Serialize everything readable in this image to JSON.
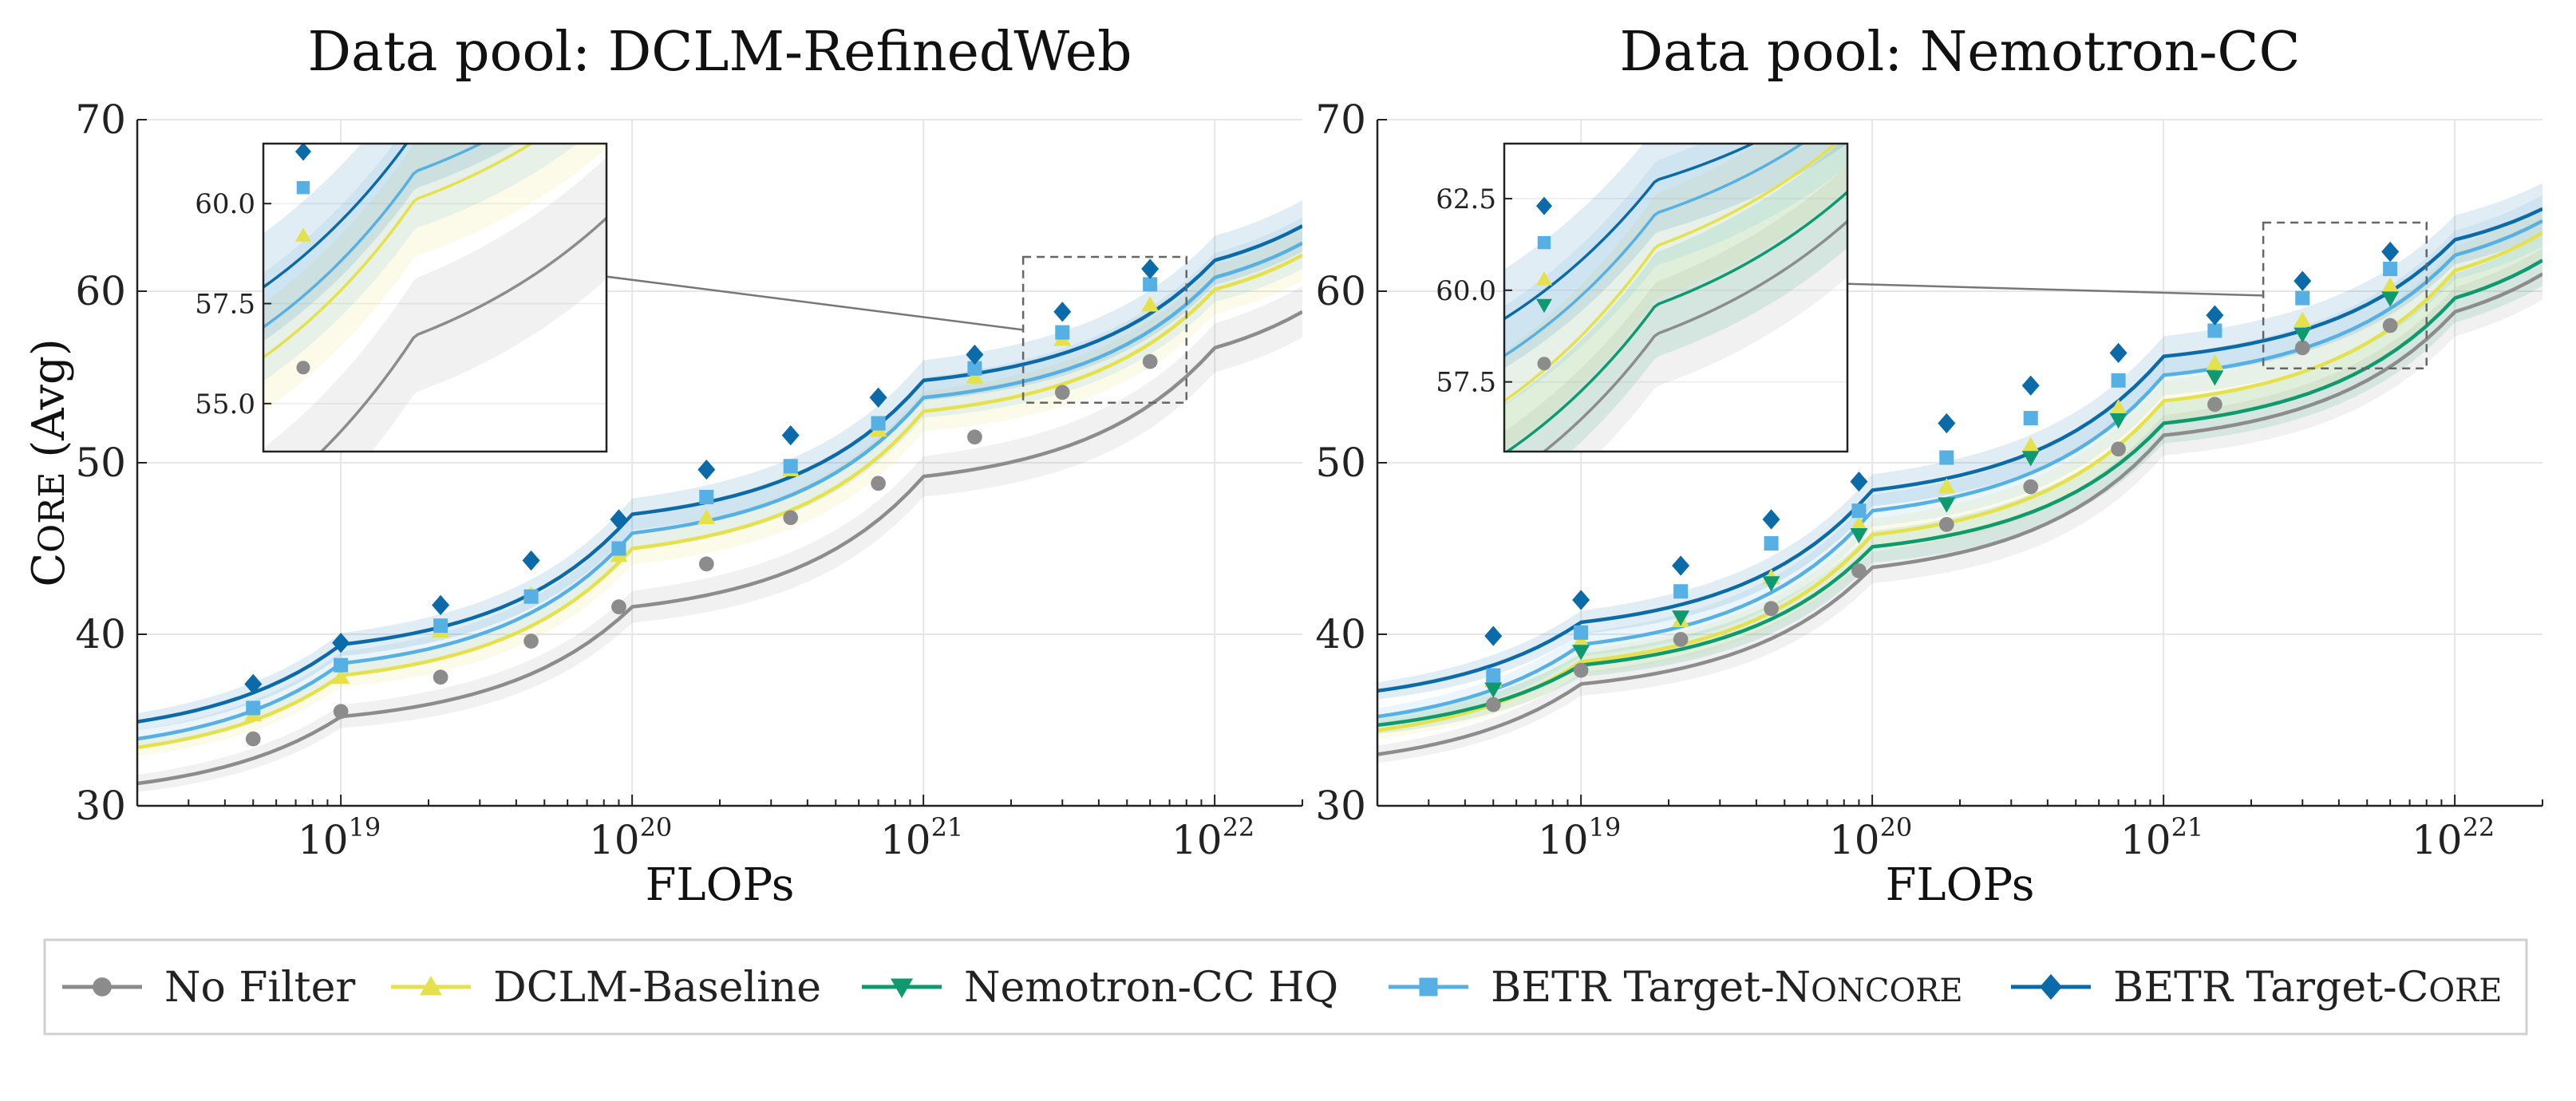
{
  "chart_data": [
    {
      "type": "line",
      "title": "Data pool: DCLM-RefinedWeb",
      "xlabel": "FLOPs",
      "ylabel": "Core (Avg)",
      "xscale": "log",
      "xlim": [
        2e+18,
        2e+22
      ],
      "ylim": [
        30,
        70
      ],
      "x_ticks": [
        {
          "base": "10",
          "exp": "19",
          "value": 1e+19
        },
        {
          "base": "10",
          "exp": "20",
          "value": 1e+20
        },
        {
          "base": "10",
          "exp": "21",
          "value": 1e+21
        },
        {
          "base": "10",
          "exp": "22",
          "value": 1e+22
        }
      ],
      "y_ticks": [
        "30",
        "40",
        "50",
        "60",
        "70"
      ],
      "grid": true,
      "x": [
        5e+18,
        1e+19,
        2.2e+19,
        4.5e+19,
        9e+19,
        1.8e+20,
        3.5e+20,
        7e+20,
        1.5e+21,
        3e+21,
        6e+21
      ],
      "series": [
        {
          "name": "No Filter",
          "marker": "circle",
          "color": "#8c8c8c",
          "values": [
            33.9,
            35.5,
            37.5,
            39.6,
            41.6,
            44.1,
            46.8,
            48.8,
            51.5,
            54.1,
            55.9
          ],
          "fit": {
            "x": [
              2e+18,
              1e+19,
              1e+20,
              1e+21,
              1e+22,
              2e+22
            ],
            "y": [
              31.3,
              35.2,
              41.6,
              49.2,
              56.7,
              58.8
            ]
          }
        },
        {
          "name": "DCLM-Baseline",
          "marker": "triangle-up",
          "color": "#e4e14d",
          "values": [
            35.3,
            37.5,
            40.2,
            42.3,
            44.6,
            46.8,
            49.6,
            51.9,
            55.0,
            57.2,
            59.2
          ],
          "fit": {
            "x": [
              2e+18,
              1e+19,
              1e+20,
              1e+21,
              1e+22,
              2e+22
            ],
            "y": [
              33.4,
              37.6,
              45.0,
              53.0,
              60.1,
              62.1
            ]
          }
        },
        {
          "name": "BETR Target-Noncore",
          "marker": "square",
          "color": "#56b0e4",
          "values": [
            35.7,
            38.2,
            40.5,
            42.2,
            45.0,
            48.0,
            49.8,
            52.3,
            55.5,
            57.6,
            60.4
          ],
          "fit": {
            "x": [
              2e+18,
              1e+19,
              1e+20,
              1e+21,
              1e+22,
              2e+22
            ],
            "y": [
              33.9,
              38.3,
              45.9,
              53.8,
              60.8,
              62.8
            ]
          }
        },
        {
          "name": "BETR Target-Core",
          "marker": "diamond",
          "color": "#0b6aa8",
          "values": [
            37.1,
            39.5,
            41.7,
            44.3,
            46.7,
            49.6,
            51.6,
            53.8,
            56.3,
            58.8,
            61.3
          ],
          "fit": {
            "x": [
              2e+18,
              1e+19,
              1e+20,
              1e+21,
              1e+22,
              2e+22
            ],
            "y": [
              34.9,
              39.4,
              47.0,
              54.8,
              61.8,
              63.8
            ]
          }
        }
      ],
      "inset": {
        "xlim": [
          5e+21,
          2.4e+22
        ],
        "ylim": [
          53.8,
          61.5
        ],
        "y_ticks": [
          "55.0",
          "57.5",
          "60.0"
        ]
      },
      "zoom_box": {
        "x": [
          2.2e+21,
          8e+21
        ],
        "y": [
          53.5,
          62.0
        ]
      }
    },
    {
      "type": "line",
      "title": "Data pool: Nemotron-CC",
      "xlabel": "FLOPs",
      "ylabel": "",
      "xscale": "log",
      "xlim": [
        2e+18,
        2e+22
      ],
      "ylim": [
        30,
        70
      ],
      "x_ticks": [
        {
          "base": "10",
          "exp": "19",
          "value": 1e+19
        },
        {
          "base": "10",
          "exp": "20",
          "value": 1e+20
        },
        {
          "base": "10",
          "exp": "21",
          "value": 1e+21
        },
        {
          "base": "10",
          "exp": "22",
          "value": 1e+22
        }
      ],
      "y_ticks": [
        "30",
        "40",
        "50",
        "60",
        "70"
      ],
      "grid": true,
      "x": [
        5e+18,
        1e+19,
        2.2e+19,
        4.5e+19,
        9e+19,
        1.8e+20,
        3.5e+20,
        7e+20,
        1.5e+21,
        3e+21,
        6e+21
      ],
      "series": [
        {
          "name": "No Filter",
          "marker": "circle",
          "color": "#8c8c8c",
          "values": [
            35.9,
            37.9,
            39.7,
            41.5,
            43.7,
            46.4,
            48.6,
            50.8,
            53.4,
            56.7,
            58.0
          ],
          "fit": {
            "x": [
              2e+18,
              1e+19,
              1e+20,
              1e+21,
              1e+22,
              2e+22
            ],
            "y": [
              33.0,
              37.1,
              43.9,
              51.6,
              58.8,
              61.0
            ]
          }
        },
        {
          "name": "DCLM-Baseline",
          "marker": "triangle-up",
          "color": "#e4e14d",
          "values": [
            37.3,
            39.6,
            40.8,
            43.3,
            46.4,
            48.6,
            51.0,
            53.2,
            55.8,
            58.3,
            60.3
          ],
          "fit": {
            "x": [
              2e+18,
              1e+19,
              1e+20,
              1e+21,
              1e+22,
              2e+22
            ],
            "y": [
              34.4,
              38.4,
              45.8,
              53.6,
              61.2,
              63.4
            ]
          }
        },
        {
          "name": "Nemotron-CC HQ",
          "marker": "triangle-down",
          "color": "#0e9a6e",
          "values": [
            36.8,
            39.0,
            41.0,
            43.0,
            45.8,
            47.6,
            50.3,
            52.5,
            55.0,
            57.5,
            59.6
          ],
          "fit": {
            "x": [
              2e+18,
              1e+19,
              1e+20,
              1e+21,
              1e+22,
              2e+22
            ],
            "y": [
              34.7,
              38.2,
              45.1,
              52.3,
              59.6,
              61.8
            ]
          }
        },
        {
          "name": "BETR Target-Noncore",
          "marker": "square",
          "color": "#56b0e4",
          "values": [
            37.6,
            40.1,
            42.5,
            45.3,
            47.2,
            50.3,
            52.6,
            54.8,
            57.7,
            59.6,
            61.3
          ],
          "fit": {
            "x": [
              2e+18,
              1e+19,
              1e+20,
              1e+21,
              1e+22,
              2e+22
            ],
            "y": [
              35.2,
              39.4,
              47.2,
              55.1,
              62.1,
              64.1
            ]
          }
        },
        {
          "name": "BETR Target-Core",
          "marker": "diamond",
          "color": "#0b6aa8",
          "values": [
            39.9,
            42.0,
            44.0,
            46.7,
            48.9,
            52.3,
            54.5,
            56.4,
            58.6,
            60.6,
            62.3
          ],
          "fit": {
            "x": [
              2e+18,
              1e+19,
              1e+20,
              1e+21,
              1e+22,
              2e+22
            ],
            "y": [
              36.7,
              40.7,
              48.4,
              56.2,
              63.0,
              64.8
            ]
          }
        }
      ],
      "inset": {
        "xlim": [
          5e+21,
          2.4e+22
        ],
        "ylim": [
          55.6,
          64.0
        ],
        "y_ticks": [
          "57.5",
          "60.0",
          "62.5"
        ]
      },
      "zoom_box": {
        "x": [
          2.2e+21,
          8e+21
        ],
        "y": [
          55.5,
          64.0
        ]
      }
    }
  ],
  "legend": {
    "placement": "bottom",
    "entries": [
      {
        "label": "No Filter",
        "label_sc": "",
        "marker": "circle",
        "color": "#8c8c8c"
      },
      {
        "label": "DCLM-Baseline",
        "label_sc": "",
        "marker": "triangle-up",
        "color": "#e4e14d"
      },
      {
        "label": "Nemotron-CC HQ",
        "label_sc": "",
        "marker": "triangle-down",
        "color": "#0e9a6e"
      },
      {
        "label": "BETR Target-",
        "label_sc": "Noncore",
        "marker": "square",
        "color": "#56b0e4"
      },
      {
        "label": "BETR Target-",
        "label_sc": "Core",
        "marker": "diamond",
        "color": "#0b6aa8"
      }
    ]
  }
}
